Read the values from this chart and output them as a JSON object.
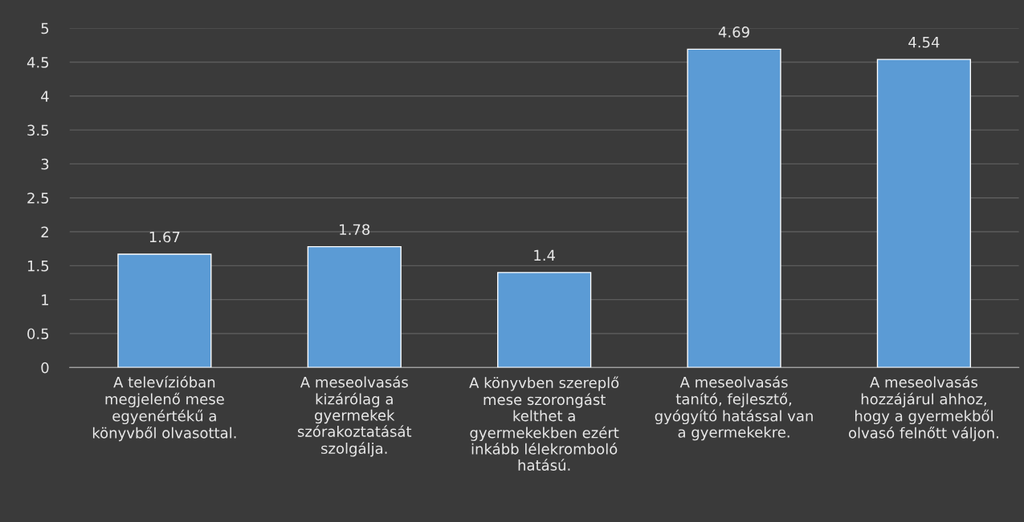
{
  "chart_data": {
    "type": "bar",
    "categories": [
      "A televízióban\nmegjelenő mese\negyenértékű a\nkönyvből olvasottal.",
      "A meseolvasás\nkizárólag a\ngyermekek\nszórakoztatását\nszolgálja.",
      "A könyvben szereplő\nmese szorongást\nkelthet a\ngyermekekben ezért\ninkább lélekromboló\nhatású.",
      "A meseolvasás\ntanító, fejlesztő,\ngyógyító hatással van\na gyermekekre.",
      "A meseolvasás\nhozzájárul ahhoz,\nhogy a gyermekből\nolvasó felnőtt váljon."
    ],
    "values": [
      1.67,
      1.78,
      1.4,
      4.69,
      4.54
    ],
    "color": "#5b9bd5",
    "ylim": [
      0,
      5
    ],
    "yticks": [
      0,
      0.5,
      1,
      1.5,
      2,
      2.5,
      3,
      3.5,
      4,
      4.5,
      5
    ],
    "grid": "y",
    "data_labels": true
  }
}
